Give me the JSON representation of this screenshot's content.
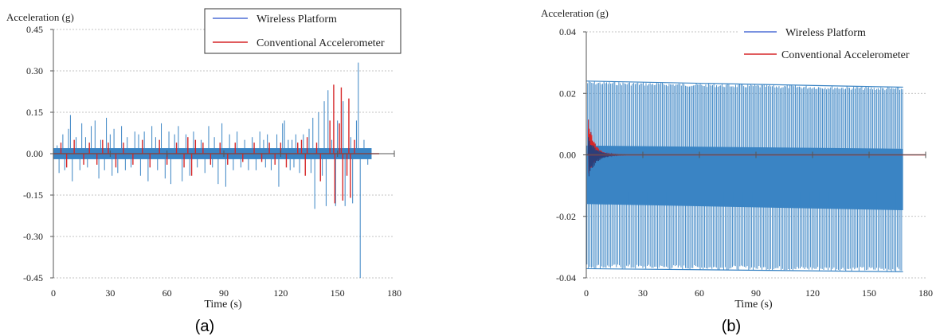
{
  "chart_data": [
    {
      "type": "line",
      "panel_label": "(a)",
      "ylabel": "Acceleration (g)",
      "xlabel": "Time (s)",
      "xlim": [
        0,
        180
      ],
      "ylim": [
        -0.45,
        0.45
      ],
      "xticks": [
        "0",
        "30",
        "60",
        "90",
        "120",
        "150",
        "180"
      ],
      "yticks": [
        "0.45",
        "0.30",
        "0.15",
        "0.00",
        "-0.15",
        "-0.30",
        "-0.45"
      ],
      "grid": "horizontal dotted",
      "legend_position": "top-right",
      "series": [
        {
          "name": "Wireless Platform",
          "color": "#3a84c4",
          "legend_color": "#4f6fd6",
          "x_range": [
            0,
            168
          ],
          "noise_band": [
            -0.02,
            0.02
          ],
          "spikes": [
            {
              "x": 2,
              "y": 0.03
            },
            {
              "x": 3,
              "y": -0.07
            },
            {
              "x": 5,
              "y": 0.07
            },
            {
              "x": 6,
              "y": -0.06
            },
            {
              "x": 8,
              "y": 0.09
            },
            {
              "x": 9,
              "y": 0.14
            },
            {
              "x": 10,
              "y": -0.1
            },
            {
              "x": 12,
              "y": 0.06
            },
            {
              "x": 14,
              "y": -0.06
            },
            {
              "x": 15,
              "y": 0.11
            },
            {
              "x": 17,
              "y": 0.06
            },
            {
              "x": 18,
              "y": -0.05
            },
            {
              "x": 20,
              "y": 0.1
            },
            {
              "x": 22,
              "y": 0.12
            },
            {
              "x": 24,
              "y": -0.09
            },
            {
              "x": 25,
              "y": 0.05
            },
            {
              "x": 27,
              "y": -0.06
            },
            {
              "x": 28,
              "y": 0.13
            },
            {
              "x": 30,
              "y": 0.07
            },
            {
              "x": 31,
              "y": -0.08
            },
            {
              "x": 32,
              "y": 0.09
            },
            {
              "x": 34,
              "y": -0.07
            },
            {
              "x": 36,
              "y": 0.1
            },
            {
              "x": 38,
              "y": -0.06
            },
            {
              "x": 39,
              "y": 0.06
            },
            {
              "x": 41,
              "y": -0.05
            },
            {
              "x": 43,
              "y": 0.08
            },
            {
              "x": 45,
              "y": 0.07
            },
            {
              "x": 46,
              "y": -0.08
            },
            {
              "x": 48,
              "y": 0.08
            },
            {
              "x": 50,
              "y": -0.1
            },
            {
              "x": 52,
              "y": 0.1
            },
            {
              "x": 54,
              "y": 0.06
            },
            {
              "x": 55,
              "y": -0.06
            },
            {
              "x": 57,
              "y": 0.11
            },
            {
              "x": 59,
              "y": -0.09
            },
            {
              "x": 61,
              "y": 0.08
            },
            {
              "x": 62,
              "y": -0.11
            },
            {
              "x": 64,
              "y": 0.07
            },
            {
              "x": 66,
              "y": 0.1
            },
            {
              "x": 68,
              "y": -0.1
            },
            {
              "x": 70,
              "y": 0.07
            },
            {
              "x": 72,
              "y": -0.08
            },
            {
              "x": 74,
              "y": 0.08
            },
            {
              "x": 76,
              "y": -0.05
            },
            {
              "x": 78,
              "y": 0.05
            },
            {
              "x": 80,
              "y": -0.07
            },
            {
              "x": 82,
              "y": 0.1
            },
            {
              "x": 84,
              "y": -0.05
            },
            {
              "x": 85,
              "y": 0.06
            },
            {
              "x": 87,
              "y": -0.11
            },
            {
              "x": 89,
              "y": 0.11
            },
            {
              "x": 91,
              "y": -0.12
            },
            {
              "x": 93,
              "y": 0.07
            },
            {
              "x": 95,
              "y": -0.06
            },
            {
              "x": 97,
              "y": 0.08
            },
            {
              "x": 99,
              "y": -0.05
            },
            {
              "x": 101,
              "y": 0.05
            },
            {
              "x": 103,
              "y": -0.06
            },
            {
              "x": 105,
              "y": 0.06
            },
            {
              "x": 107,
              "y": -0.06
            },
            {
              "x": 109,
              "y": 0.08
            },
            {
              "x": 111,
              "y": 0.05
            },
            {
              "x": 112,
              "y": -0.05
            },
            {
              "x": 113,
              "y": 0.07
            },
            {
              "x": 115,
              "y": -0.06
            },
            {
              "x": 118,
              "y": 0.07
            },
            {
              "x": 119,
              "y": -0.12
            },
            {
              "x": 121,
              "y": 0.11
            },
            {
              "x": 122,
              "y": 0.12
            },
            {
              "x": 124,
              "y": 0.05
            },
            {
              "x": 125,
              "y": -0.06
            },
            {
              "x": 126,
              "y": 0.05
            },
            {
              "x": 127,
              "y": -0.05
            },
            {
              "x": 128,
              "y": 0.07
            },
            {
              "x": 130,
              "y": -0.07
            },
            {
              "x": 132,
              "y": 0.07
            },
            {
              "x": 135,
              "y": 0.09
            },
            {
              "x": 136,
              "y": -0.07
            },
            {
              "x": 137,
              "y": 0.13
            },
            {
              "x": 138,
              "y": -0.2
            },
            {
              "x": 140,
              "y": 0.15
            },
            {
              "x": 142,
              "y": -0.08
            },
            {
              "x": 143,
              "y": 0.19
            },
            {
              "x": 144,
              "y": -0.19
            },
            {
              "x": 145,
              "y": 0.23
            },
            {
              "x": 147,
              "y": 0.05
            },
            {
              "x": 149,
              "y": -0.19
            },
            {
              "x": 150,
              "y": 0.12
            },
            {
              "x": 153,
              "y": 0.19
            },
            {
              "x": 154,
              "y": -0.19
            },
            {
              "x": 157,
              "y": 0.06
            },
            {
              "x": 158,
              "y": -0.18
            },
            {
              "x": 160,
              "y": 0.12
            },
            {
              "x": 161,
              "y": 0.33
            },
            {
              "x": 162,
              "y": -0.45
            },
            {
              "x": 164,
              "y": 0.05
            },
            {
              "x": 166,
              "y": -0.04
            }
          ]
        },
        {
          "name": "Conventional Accelerometer",
          "color": "#d62728",
          "x_range": [
            0,
            172
          ],
          "spikes": [
            {
              "x": 4,
              "y": 0.04
            },
            {
              "x": 7,
              "y": -0.05
            },
            {
              "x": 11,
              "y": 0.05
            },
            {
              "x": 16,
              "y": -0.04
            },
            {
              "x": 19,
              "y": 0.04
            },
            {
              "x": 23,
              "y": -0.04
            },
            {
              "x": 26,
              "y": 0.05
            },
            {
              "x": 29,
              "y": 0.04
            },
            {
              "x": 33,
              "y": -0.05
            },
            {
              "x": 37,
              "y": 0.04
            },
            {
              "x": 42,
              "y": -0.04
            },
            {
              "x": 47,
              "y": 0.05
            },
            {
              "x": 51,
              "y": -0.05
            },
            {
              "x": 56,
              "y": 0.05
            },
            {
              "x": 60,
              "y": -0.04
            },
            {
              "x": 65,
              "y": 0.04
            },
            {
              "x": 69,
              "y": -0.05
            },
            {
              "x": 71,
              "y": 0.06
            },
            {
              "x": 73,
              "y": -0.08
            },
            {
              "x": 75,
              "y": 0.05
            },
            {
              "x": 79,
              "y": 0.04
            },
            {
              "x": 83,
              "y": -0.04
            },
            {
              "x": 88,
              "y": 0.04
            },
            {
              "x": 92,
              "y": -0.04
            },
            {
              "x": 96,
              "y": 0.04
            },
            {
              "x": 100,
              "y": -0.03
            },
            {
              "x": 106,
              "y": 0.04
            },
            {
              "x": 110,
              "y": -0.03
            },
            {
              "x": 114,
              "y": 0.04
            },
            {
              "x": 117,
              "y": -0.04
            },
            {
              "x": 120,
              "y": 0.04
            },
            {
              "x": 123,
              "y": -0.05
            },
            {
              "x": 129,
              "y": 0.04
            },
            {
              "x": 131,
              "y": 0.05
            },
            {
              "x": 133,
              "y": -0.08
            },
            {
              "x": 134,
              "y": 0.06
            },
            {
              "x": 139,
              "y": 0.04
            },
            {
              "x": 141,
              "y": -0.1
            },
            {
              "x": 146,
              "y": 0.12
            },
            {
              "x": 148,
              "y": 0.25
            },
            {
              "x": 148.6,
              "y": -0.18
            },
            {
              "x": 151,
              "y": 0.11
            },
            {
              "x": 152,
              "y": 0.24
            },
            {
              "x": 152.8,
              "y": -0.17
            },
            {
              "x": 155,
              "y": -0.08
            },
            {
              "x": 156,
              "y": 0.2
            },
            {
              "x": 156.8,
              "y": -0.16
            },
            {
              "x": 159,
              "y": 0.05
            }
          ]
        }
      ]
    },
    {
      "type": "line",
      "panel_label": "(b)",
      "ylabel": "Acceleration (g)",
      "xlabel": "Time (s)",
      "xlim": [
        0,
        180
      ],
      "ylim": [
        -0.04,
        0.04
      ],
      "xticks": [
        "0",
        "30",
        "60",
        "90",
        "120",
        "150",
        "180"
      ],
      "yticks": [
        "0.04",
        "0.02",
        "0.00",
        "-0.02",
        "-0.04"
      ],
      "grid": "horizontal dotted",
      "legend_position": "top-right",
      "series": [
        {
          "name": "Wireless Platform",
          "color": "#3a84c4",
          "legend_color": "#4f6fd6",
          "x_range": [
            0,
            168
          ],
          "band_upper": [
            [
              0,
              0.003
            ],
            [
              168,
              0.002
            ]
          ],
          "band_lower": [
            [
              0,
              -0.016
            ],
            [
              168,
              -0.018
            ]
          ],
          "spike_max": [
            [
              0,
              0.024
            ],
            [
              168,
              0.022
            ]
          ],
          "spike_min": [
            [
              0,
              -0.037
            ],
            [
              168,
              -0.038
            ]
          ]
        },
        {
          "name": "Conventional Accelerometer",
          "color": "#d62728",
          "x_range": [
            0,
            180
          ],
          "impulse": {
            "x": 1,
            "peak": 0.012,
            "trough": -0.007,
            "decay_to_zero_by": 25
          }
        }
      ]
    }
  ]
}
